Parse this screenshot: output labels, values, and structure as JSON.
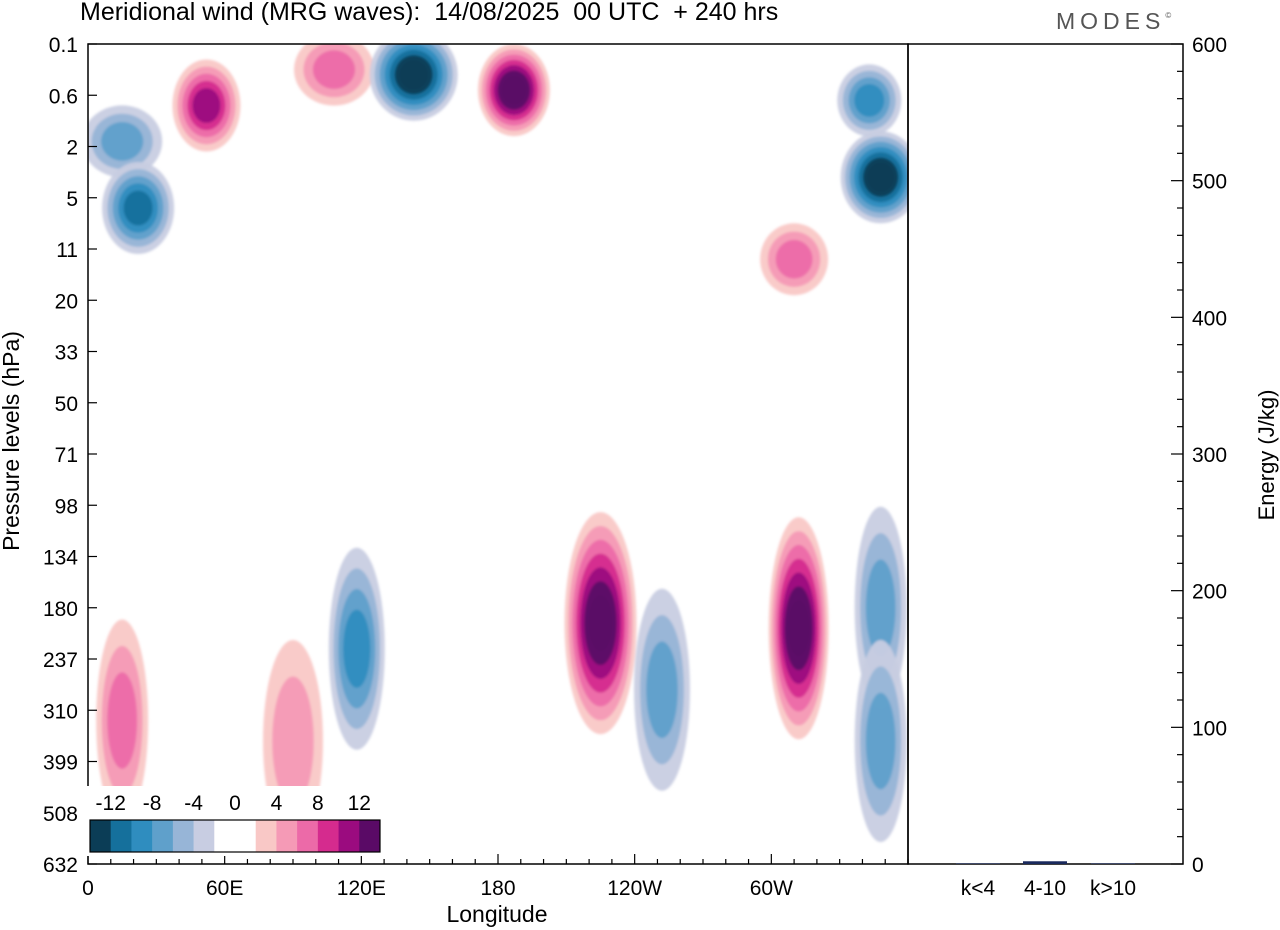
{
  "header": {
    "title": "Meridional wind (MRG waves):  14/08/2025  00 UTC  + 240 hrs",
    "brand": "MODES",
    "brand_mark": "©"
  },
  "chart_data": [
    {
      "type": "heatmap",
      "title": "Meridional wind (MRG waves):  14/08/2025  00 UTC  + 240 hrs",
      "xlabel": "Longitude",
      "ylabel": "Pressure levels (hPa)",
      "x_ticks": [
        "0",
        "60E",
        "120E",
        "180",
        "120W",
        "60W"
      ],
      "x_tick_degrees": [
        0,
        60,
        120,
        180,
        240,
        300
      ],
      "xlim": [
        0,
        360
      ],
      "y_ticks": [
        "0.1",
        "0.6",
        "2",
        "5",
        "11",
        "20",
        "33",
        "50",
        "71",
        "98",
        "134",
        "180",
        "237",
        "310",
        "399",
        "508",
        "632"
      ],
      "colorbar": {
        "labels": [
          "-12",
          "-8",
          "-4",
          "0",
          "4",
          "8",
          "12"
        ],
        "levels": [
          -14,
          -12,
          -10,
          -8,
          -6,
          -4,
          -2,
          0,
          2,
          4,
          6,
          8,
          10,
          12,
          14
        ],
        "colors": [
          "#0b3d56",
          "#15709c",
          "#2f8dbf",
          "#5fa0cb",
          "#97b5d7",
          "#c8cde2",
          "#ffffff",
          "#ffffff",
          "#f9c8c6",
          "#f59ab6",
          "#ec6aa8",
          "#d52b8e",
          "#9b0b7f",
          "#5a0a66"
        ]
      },
      "features": [
        {
          "lon": 52,
          "lev": 1.2,
          "value": 11
        },
        {
          "lon": 108,
          "lev": 0.5,
          "value": 7
        },
        {
          "lon": 143,
          "lev": 0.6,
          "value": -15
        },
        {
          "lon": 187,
          "lev": 0.9,
          "value": 14
        },
        {
          "lon": 15,
          "lev": 1.9,
          "value": -6
        },
        {
          "lon": 22,
          "lev": 3.2,
          "value": -11
        },
        {
          "lon": 348,
          "lev": 2.6,
          "value": -15
        },
        {
          "lon": 343,
          "lev": 1.1,
          "value": -9
        },
        {
          "lon": 310,
          "lev": 4.2,
          "value": 7
        },
        {
          "lon": 225,
          "lev": 11.3,
          "value": 14
        },
        {
          "lon": 312,
          "lev": 11.4,
          "value": 15
        },
        {
          "lon": 15,
          "lev": 13.2,
          "value": 7
        },
        {
          "lon": 118,
          "lev": 11.8,
          "value": -8
        },
        {
          "lon": 252,
          "lev": 12.6,
          "value": -7
        },
        {
          "lon": 348,
          "lev": 11.0,
          "value": -7
        },
        {
          "lon": 348,
          "lev": 13.6,
          "value": -6
        },
        {
          "lon": 90,
          "lev": 13.6,
          "value": 5
        }
      ]
    },
    {
      "type": "bar",
      "categories": [
        "k<4",
        "4-10",
        "k>10"
      ],
      "values": [
        0,
        2,
        0
      ],
      "ylabel": "Energy (J/kg)",
      "ylim": [
        0,
        600
      ],
      "y_ticks": [
        "0",
        "100",
        "200",
        "300",
        "400",
        "500",
        "600"
      ],
      "bar_color": "#1a2a5c"
    }
  ]
}
